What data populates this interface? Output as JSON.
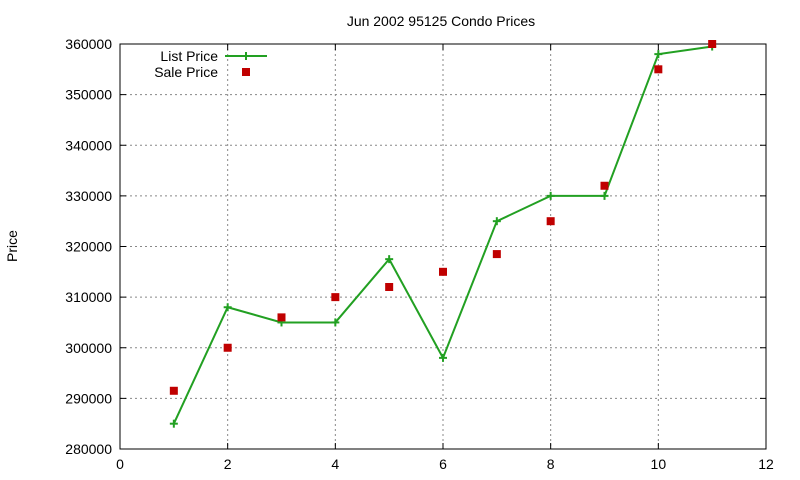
{
  "chart_data": {
    "type": "line",
    "title": "Jun 2002 95125 Condo Prices",
    "xlabel": "",
    "ylabel": "Price",
    "xlim": [
      0,
      12
    ],
    "ylim": [
      280000,
      360000
    ],
    "xticks": [
      0,
      2,
      4,
      6,
      8,
      10,
      12
    ],
    "yticks": [
      280000,
      290000,
      300000,
      310000,
      320000,
      330000,
      340000,
      350000,
      360000
    ],
    "grid": true,
    "legend_position": "top-left",
    "series": [
      {
        "name": "List Price",
        "style": "line+cross",
        "color": "#22a022",
        "x": [
          1,
          2,
          3,
          4,
          5,
          6,
          7,
          8,
          9,
          10,
          11
        ],
        "y": [
          285000,
          308000,
          305000,
          305000,
          317500,
          298000,
          325000,
          330000,
          330000,
          358000,
          359500
        ]
      },
      {
        "name": "Sale Price",
        "style": "square",
        "color": "#c00000",
        "x": [
          1,
          2,
          3,
          4,
          5,
          6,
          7,
          8,
          9,
          10,
          11
        ],
        "y": [
          291500,
          300000,
          306000,
          310000,
          312000,
          315000,
          318500,
          325000,
          332000,
          355000,
          360000
        ]
      }
    ]
  }
}
